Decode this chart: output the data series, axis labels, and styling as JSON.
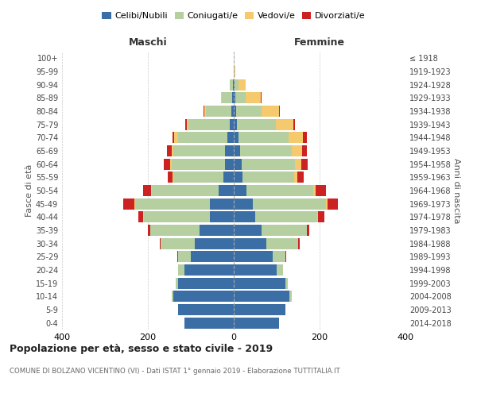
{
  "age_groups": [
    "0-4",
    "5-9",
    "10-14",
    "15-19",
    "20-24",
    "25-29",
    "30-34",
    "35-39",
    "40-44",
    "45-49",
    "50-54",
    "55-59",
    "60-64",
    "65-69",
    "70-74",
    "75-79",
    "80-84",
    "85-89",
    "90-94",
    "95-99",
    "100+"
  ],
  "birth_years": [
    "2014-2018",
    "2009-2013",
    "2004-2008",
    "1999-2003",
    "1994-1998",
    "1989-1993",
    "1984-1988",
    "1979-1983",
    "1974-1978",
    "1969-1973",
    "1964-1968",
    "1959-1963",
    "1954-1958",
    "1949-1953",
    "1944-1948",
    "1939-1943",
    "1934-1938",
    "1929-1933",
    "1924-1928",
    "1919-1923",
    "≤ 1918"
  ],
  "males": {
    "celibi": [
      115,
      130,
      140,
      130,
      115,
      100,
      90,
      80,
      55,
      55,
      35,
      25,
      20,
      20,
      15,
      10,
      5,
      3,
      2,
      0,
      0
    ],
    "coniugati": [
      0,
      0,
      5,
      5,
      15,
      30,
      80,
      115,
      155,
      175,
      155,
      115,
      125,
      120,
      115,
      95,
      60,
      25,
      8,
      0,
      0
    ],
    "vedovi": [
      0,
      0,
      0,
      0,
      0,
      0,
      0,
      0,
      2,
      2,
      2,
      3,
      3,
      5,
      8,
      5,
      3,
      2,
      0,
      0,
      0
    ],
    "divorziati": [
      0,
      0,
      0,
      0,
      0,
      2,
      3,
      5,
      10,
      25,
      20,
      10,
      15,
      10,
      5,
      3,
      2,
      0,
      0,
      0,
      0
    ]
  },
  "females": {
    "nubili": [
      105,
      120,
      130,
      120,
      100,
      90,
      75,
      65,
      50,
      45,
      30,
      20,
      18,
      15,
      12,
      8,
      5,
      3,
      2,
      0,
      0
    ],
    "coniugate": [
      0,
      0,
      5,
      5,
      15,
      30,
      75,
      105,
      145,
      170,
      155,
      120,
      125,
      120,
      115,
      90,
      60,
      25,
      10,
      2,
      0
    ],
    "vedove": [
      0,
      0,
      0,
      0,
      0,
      0,
      0,
      0,
      2,
      3,
      5,
      8,
      15,
      25,
      35,
      40,
      40,
      35,
      15,
      2,
      0
    ],
    "divorziate": [
      0,
      0,
      0,
      0,
      0,
      2,
      3,
      5,
      15,
      25,
      25,
      15,
      15,
      10,
      8,
      5,
      3,
      2,
      0,
      0,
      0
    ]
  },
  "colors": {
    "celibi": "#3a6ea5",
    "coniugati": "#b5cfa0",
    "vedovi": "#f5c96e",
    "divorziati": "#cc2222"
  },
  "xlim": 400,
  "title": "Popolazione per età, sesso e stato civile - 2019",
  "subtitle": "COMUNE DI BOLZANO VICENTINO (VI) - Dati ISTAT 1° gennaio 2019 - Elaborazione TUTTITALIA.IT",
  "ylabel_left": "Fasce di età",
  "ylabel_right": "Anni di nascita",
  "xlabel_left": "Maschi",
  "xlabel_right": "Femmine",
  "legend_labels": [
    "Celibi/Nubili",
    "Coniugati/e",
    "Vedovi/e",
    "Divorziati/e"
  ],
  "bg_color": "#ffffff",
  "grid_color": "#cccccc"
}
